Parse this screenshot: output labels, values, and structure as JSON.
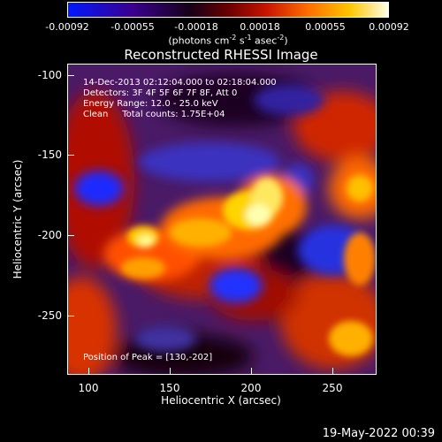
{
  "colorbar": {
    "ticks": [
      "-0.00092",
      "-0.00055",
      "-0.00018",
      "0.00018",
      "0.00055",
      "0.00092"
    ],
    "units_prefix": "(photons cm",
    "units_exp1": "-2",
    "units_mid1": " s",
    "units_exp2": "-1",
    "units_mid2": " asec",
    "units_exp3": "-2",
    "units_suffix": ")",
    "colors": [
      "#0018ff",
      "#3a0090",
      "#150018",
      "#6a0000",
      "#c81400",
      "#ff6e00",
      "#ffc400",
      "#ffffe8"
    ]
  },
  "title": "Reconstructed RHESSI Image",
  "info": {
    "time_range": "14-Dec-2013 02:12:04.000 to 02:18:04.000",
    "detectors": "Detectors: 3F 4F 5F 6F 7F 8F, Att 0",
    "energy": "Energy Range: 12.0 - 25.0 keV",
    "clean": "Clean     Total counts: 1.75E+04",
    "peak": "Position of Peak = [130,-202]"
  },
  "axes": {
    "xlabel": "Heliocentric X (arcsec)",
    "ylabel": "Heliocentric Y (arcsec)",
    "xticks": [
      "100",
      "150",
      "200",
      "250"
    ],
    "yticks": [
      "-100",
      "-150",
      "-200",
      "-250"
    ]
  },
  "footer_date": "19-May-2022 00:39"
}
